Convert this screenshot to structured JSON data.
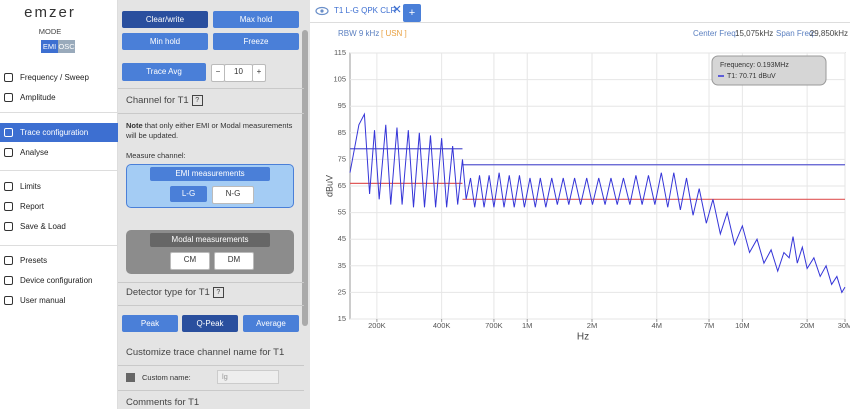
{
  "sidebar": {
    "logo": "emzer",
    "mode_label": "MODE",
    "modes": [
      "EMI",
      "OSC"
    ],
    "nav": [
      "Frequency / Sweep",
      "Amplitude",
      "Trace configuration",
      "Analyse",
      "Limits",
      "Report",
      "Save & Load",
      "Presets",
      "Device configuration",
      "User manual"
    ]
  },
  "panel": {
    "trace_buttons": [
      "Clear/write",
      "Max hold",
      "Min hold",
      "Freeze"
    ],
    "trace_avg": {
      "label": "Trace Avg",
      "minus": "−",
      "value": 10,
      "plus": "+"
    },
    "help_icon": "?",
    "channel_title": "Channel for T1",
    "note_bold": "Note",
    "note_text": "that only either EMI or Modal measurements will be updated.",
    "measure_label": "Measure channel:",
    "emi": {
      "title": "EMI measurements",
      "options": [
        "L-G",
        "N-G"
      ]
    },
    "modal": {
      "title": "Modal measurements",
      "options": [
        "CM",
        "DM"
      ]
    },
    "detector_title": "Detector type for T1",
    "detectors": [
      "Peak",
      "Q-Peak",
      "Average"
    ],
    "customize_title": "Customize trace channel name for T1",
    "custom_label": "Custom name:",
    "custom_value": "lg",
    "comments_title": "Comments for T1"
  },
  "tab": {
    "label": "T1 L-G QPK CLR",
    "add": "+"
  },
  "chart_data": {
    "type": "line",
    "rbw": "RBW 9 kHz",
    "rbw_tag": "[ USN ]",
    "center_label": "Center Freq:",
    "center_value": "15,075kHz",
    "span_label": "Span Freq:",
    "span_value": "29,850kHz",
    "xlabel": "Hz",
    "ylabel": "dBuV",
    "xscale": "log",
    "grid": true,
    "xlim": [
      150000,
      30000000
    ],
    "ylim": [
      15,
      115
    ],
    "yticks": [
      15,
      25,
      35,
      45,
      55,
      65,
      75,
      85,
      95,
      105,
      115
    ],
    "xticks": [
      {
        "value": 200000,
        "label": "200K"
      },
      {
        "value": 400000,
        "label": "400K"
      },
      {
        "value": 700000,
        "label": "700K"
      },
      {
        "value": 1000000,
        "label": "1M"
      },
      {
        "value": 2000000,
        "label": "2M"
      },
      {
        "value": 4000000,
        "label": "4M"
      },
      {
        "value": 7000000,
        "label": "7M"
      },
      {
        "value": 10000000,
        "label": "10M"
      },
      {
        "value": 20000000,
        "label": "20M"
      },
      {
        "value": 30000000,
        "label": "30M"
      }
    ],
    "tooltip": [
      "Frequency: 0.193MHz",
      "T1: 70.71 dBuV"
    ],
    "series": [
      {
        "color": "#e05a5a",
        "x": [
          150000,
          500000,
          500000,
          500000,
          30000000
        ],
        "values": [
          66,
          66,
          null,
          60,
          60
        ]
      },
      {
        "color": "#5a5ad0",
        "x": [
          150000,
          500000,
          500000,
          500000,
          30000000
        ],
        "values": [
          79,
          79,
          null,
          73,
          73
        ]
      },
      {
        "color": "#3535d8",
        "x": [
          150000,
          165000,
          175000,
          185000,
          195000,
          205000,
          220000,
          232000,
          248000,
          262000,
          280000,
          296000,
          315000,
          333000,
          355000,
          375000,
          400000,
          422000,
          450000,
          475000,
          500000,
          520000,
          545000,
          570000,
          600000,
          630000,
          665000,
          700000,
          740000,
          780000,
          825000,
          870000,
          920000,
          970000,
          1030000,
          1090000,
          1150000,
          1220000,
          1300000,
          1380000,
          1470000,
          1560000,
          1660000,
          1770000,
          1890000,
          2010000,
          2150000,
          2300000,
          2450000,
          2620000,
          2800000,
          3000000,
          3200000,
          3420000,
          3660000,
          3920000,
          4200000,
          4500000,
          4800000,
          5150000,
          5500000,
          5900000,
          6300000,
          6800000,
          7300000,
          7900000,
          8500000,
          9200000,
          10000000,
          10800000,
          11700000,
          12600000,
          13600000,
          14600000,
          15600000,
          16500000,
          17200000,
          18000000,
          19000000,
          20000000,
          21500000,
          23000000,
          24500000,
          26000000,
          27500000,
          29000000,
          30000000
        ],
        "values": [
          70,
          88,
          92,
          62,
          86,
          60,
          88,
          58,
          87,
          58,
          86,
          57,
          85,
          57,
          84,
          57,
          83,
          57,
          80,
          58,
          75,
          60,
          68,
          57,
          69,
          57,
          69,
          57,
          70,
          57,
          69,
          57,
          69,
          57,
          68,
          57,
          68,
          57,
          68,
          58,
          68,
          58,
          68,
          58,
          68,
          58,
          68,
          58,
          68,
          58,
          68,
          58,
          69,
          58,
          69,
          58,
          70,
          57,
          70,
          56,
          68,
          54,
          64,
          51,
          60,
          47,
          55,
          43,
          50,
          40,
          45,
          36,
          41,
          33,
          40,
          38,
          46,
          36,
          42,
          34,
          38,
          31,
          35,
          28,
          31,
          25,
          27
        ]
      }
    ]
  }
}
